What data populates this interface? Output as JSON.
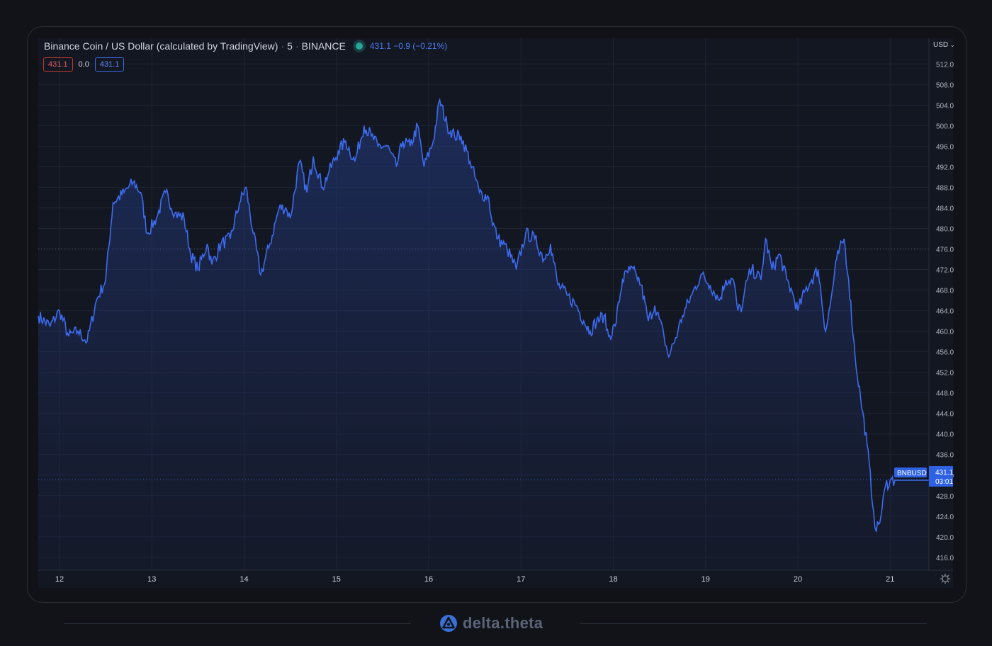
{
  "legend": {
    "symbol_name": "Binance Coin / US Dollar (calculated by TradingView)",
    "interval": "5",
    "exchange": "BINANCE",
    "quote": "431.1  −0.9 (−0.21%)"
  },
  "chips": {
    "sell": "431.1",
    "spread": "0.0",
    "buy": "431.1"
  },
  "price_axis": {
    "unit": "USD",
    "current_label": "431.1",
    "countdown": "03:01",
    "symbol_tag": "BNBUSD"
  },
  "branding": {
    "name": "delta.theta"
  },
  "colors": {
    "line": "#3d6bf0",
    "background": "#131722",
    "grid": "#1f2433",
    "text": "#d1d4dc"
  },
  "chart_data": {
    "type": "area",
    "title": "Binance Coin / US Dollar (calculated by TradingView)",
    "xlabel": "",
    "ylabel": "",
    "x_tick_labels": [
      "12",
      "13",
      "14",
      "15",
      "16",
      "17",
      "18",
      "19",
      "20",
      "21"
    ],
    "y_tick_labels": [
      "512.0",
      "508.0",
      "504.0",
      "500.0",
      "496.0",
      "492.0",
      "488.0",
      "484.0",
      "480.0",
      "476.0",
      "472.0",
      "468.0",
      "464.0",
      "460.0",
      "456.0",
      "452.0",
      "448.0",
      "444.0",
      "440.0",
      "436.0",
      "432.0",
      "428.0",
      "424.0",
      "420.0",
      "416.0"
    ],
    "ylim": [
      413.5,
      517
    ],
    "xlim": [
      11.77,
      21.42
    ],
    "grid": true,
    "reference_lines": [
      476.0,
      431.1
    ],
    "series": [
      {
        "values_x": [
          11.77,
          11.9,
          12.0,
          12.1,
          12.2,
          12.3,
          12.4,
          12.5,
          12.58,
          12.7,
          12.8,
          12.88,
          12.95,
          13.05,
          13.15,
          13.25,
          13.35,
          13.42,
          13.5,
          13.6,
          13.65,
          13.75,
          13.85,
          13.95,
          14.02,
          14.1,
          14.18,
          14.28,
          14.38,
          14.45,
          14.5,
          14.6,
          14.68,
          14.75,
          14.85,
          14.92,
          15.02,
          15.1,
          15.2,
          15.3,
          15.38,
          15.45,
          15.55,
          15.65,
          15.72,
          15.8,
          15.88,
          15.95,
          16.05,
          16.12,
          16.2,
          16.28,
          16.35,
          16.45,
          16.55,
          16.65,
          16.68,
          16.75,
          16.85,
          16.95,
          17.05,
          17.15,
          17.25,
          17.32,
          17.4,
          17.5,
          17.6,
          17.68,
          17.75,
          17.82,
          17.9,
          17.95,
          18.02,
          18.1,
          18.18,
          18.25,
          18.3,
          18.38,
          18.45,
          18.55,
          18.6,
          18.7,
          18.75,
          18.85,
          18.95,
          19.05,
          19.15,
          19.22,
          19.3,
          19.35,
          19.4,
          19.45,
          19.5,
          19.6,
          19.65,
          19.72,
          19.8,
          19.88,
          19.95,
          20.0,
          20.08,
          20.15,
          20.22,
          20.3,
          20.35,
          20.42,
          20.5,
          20.55,
          20.62,
          20.68,
          20.75,
          20.82,
          20.85,
          20.9,
          20.95,
          21.0,
          21.05,
          21.08,
          21.12,
          21.15,
          21.2,
          21.25,
          21.3,
          21.35,
          21.42
        ],
        "values_y": [
          463,
          461,
          464,
          459,
          460,
          458,
          466,
          470,
          485,
          487,
          489,
          487,
          479,
          482,
          487,
          483,
          482,
          475,
          472,
          477,
          473,
          477,
          478,
          485,
          488,
          479,
          471,
          477,
          484,
          484,
          482,
          493,
          487,
          494,
          488,
          491,
          495,
          497,
          493,
          500,
          498,
          496,
          496,
          492,
          497,
          496,
          500,
          492,
          497,
          505,
          500,
          498,
          498,
          493,
          487,
          486,
          482,
          478,
          476,
          472,
          479,
          478,
          474,
          477,
          469,
          467,
          465,
          462,
          460,
          462,
          463,
          459,
          461,
          470,
          472,
          471,
          469,
          462,
          465,
          459,
          455,
          460,
          463,
          467,
          471,
          469,
          466,
          470,
          470,
          464,
          465,
          470,
          472,
          470,
          478,
          472,
          475,
          470,
          467,
          464,
          468,
          470,
          472,
          460,
          465,
          474,
          478,
          470,
          455,
          447,
          438,
          425,
          421,
          424,
          430,
          431,
          431,
          431,
          431,
          431,
          431,
          431,
          431,
          431,
          431
        ],
        "values_x_note": "",
        "name": ""
      }
    ]
  }
}
